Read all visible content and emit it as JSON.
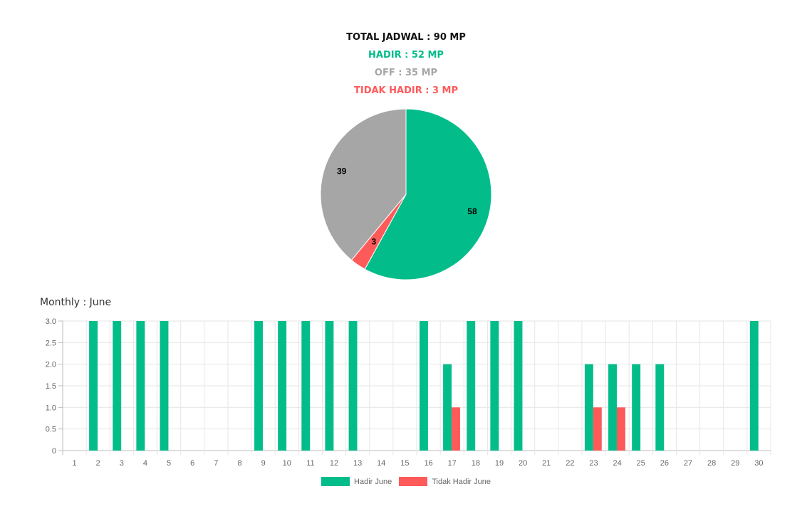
{
  "summary": {
    "total": "TOTAL JADWAL : 90 MP",
    "hadir": "HADIR : 52 MP",
    "off": "OFF : 35 MP",
    "tidak_hadir": "TIDAK HADIR : 3 MP"
  },
  "colors": {
    "hadir": "#02bd8a",
    "off": "#a6a6a6",
    "tidak_hadir": "#ff5a5a",
    "total": "#111111"
  },
  "monthly_title": "Monthly : June",
  "chart_data": [
    {
      "type": "pie",
      "slices": [
        {
          "label": "58",
          "value": 58,
          "color": "#02bd8a"
        },
        {
          "label": "3",
          "value": 3,
          "color": "#ff5a5a"
        },
        {
          "label": "39",
          "value": 39,
          "color": "#a6a6a6"
        }
      ]
    },
    {
      "type": "bar",
      "title": "Monthly : June",
      "categories": [
        "1",
        "2",
        "3",
        "4",
        "5",
        "6",
        "7",
        "8",
        "9",
        "10",
        "11",
        "12",
        "13",
        "14",
        "15",
        "16",
        "17",
        "18",
        "19",
        "20",
        "21",
        "22",
        "23",
        "24",
        "25",
        "26",
        "27",
        "28",
        "29",
        "30"
      ],
      "series": [
        {
          "name": "Hadir June",
          "color": "#02bd8a",
          "values": [
            0,
            3,
            3,
            3,
            3,
            0,
            0,
            0,
            3,
            3,
            3,
            3,
            3,
            0,
            0,
            3,
            2,
            3,
            3,
            3,
            0,
            0,
            2,
            2,
            2,
            2,
            0,
            0,
            0,
            3
          ]
        },
        {
          "name": "Tidak Hadir June",
          "color": "#ff5a5a",
          "values": [
            0,
            0,
            0,
            0,
            0,
            0,
            0,
            0,
            0,
            0,
            0,
            0,
            0,
            0,
            0,
            0,
            1,
            0,
            0,
            0,
            0,
            0,
            1,
            1,
            0,
            0,
            0,
            0,
            0,
            0
          ]
        }
      ],
      "yticks": [
        "0",
        "0.5",
        "1.0",
        "1.5",
        "2.0",
        "2.5",
        "3.0"
      ],
      "ylim": [
        0,
        3
      ],
      "grid": true,
      "legend": "bottom"
    }
  ]
}
